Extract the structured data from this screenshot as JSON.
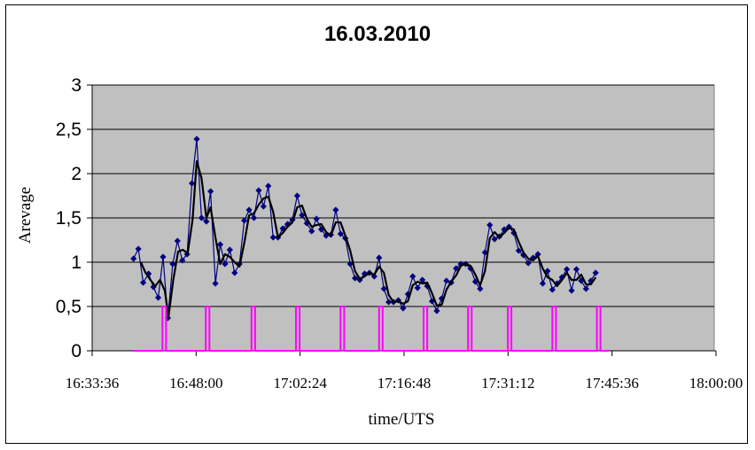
{
  "chart_data": {
    "type": "line",
    "title": "16.03.2010",
    "xlabel": "time/UTS",
    "ylabel": "Arevage",
    "ylim": [
      0,
      3
    ],
    "yticks": [
      "0",
      "0,5",
      "1",
      "1,5",
      "2",
      "2,5",
      "3"
    ],
    "xticks": [
      "16:33:36",
      "16:48:00",
      "17:02:24",
      "17:16:48",
      "17:31:12",
      "17:45:36",
      "18:00:00"
    ],
    "grid": true,
    "background_color": "#c0c0c0",
    "series": [
      {
        "color": "#000080",
        "marker": "diamond",
        "points": [
          [
            "16:39:20",
            1.04
          ],
          [
            "16:40:00",
            1.15
          ],
          [
            "16:40:40",
            0.77
          ],
          [
            "16:41:25",
            0.87
          ],
          [
            "16:42:05",
            0.72
          ],
          [
            "16:42:45",
            0.6
          ],
          [
            "16:43:25",
            1.06
          ],
          [
            "16:44:05",
            0.37
          ],
          [
            "16:44:45",
            0.98
          ],
          [
            "16:45:25",
            1.24
          ],
          [
            "16:46:05",
            1.02
          ],
          [
            "16:46:45",
            1.09
          ],
          [
            "16:47:25",
            1.89
          ],
          [
            "16:48:05",
            2.39
          ],
          [
            "16:48:45",
            1.5
          ],
          [
            "16:49:25",
            1.46
          ],
          [
            "16:50:00",
            1.8
          ],
          [
            "16:50:40",
            0.76
          ],
          [
            "16:51:20",
            1.2
          ],
          [
            "16:52:00",
            0.98
          ],
          [
            "16:52:40",
            1.14
          ],
          [
            "16:53:20",
            0.88
          ],
          [
            "16:54:00",
            0.98
          ],
          [
            "16:54:40",
            1.47
          ],
          [
            "16:55:20",
            1.59
          ],
          [
            "16:56:00",
            1.5
          ],
          [
            "16:56:40",
            1.81
          ],
          [
            "16:57:20",
            1.63
          ],
          [
            "16:58:00",
            1.86
          ],
          [
            "16:58:40",
            1.28
          ],
          [
            "16:59:20",
            1.28
          ],
          [
            "17:00:00",
            1.38
          ],
          [
            "17:00:40",
            1.43
          ],
          [
            "17:01:20",
            1.48
          ],
          [
            "17:02:00",
            1.75
          ],
          [
            "17:02:40",
            1.53
          ],
          [
            "17:03:20",
            1.44
          ],
          [
            "17:04:00",
            1.35
          ],
          [
            "17:04:40",
            1.49
          ],
          [
            "17:05:20",
            1.37
          ],
          [
            "17:06:00",
            1.3
          ],
          [
            "17:06:40",
            1.31
          ],
          [
            "17:07:20",
            1.59
          ],
          [
            "17:08:00",
            1.32
          ],
          [
            "17:08:40",
            1.27
          ],
          [
            "17:09:20",
            0.98
          ],
          [
            "17:10:00",
            0.82
          ],
          [
            "17:10:40",
            0.8
          ],
          [
            "17:11:20",
            0.87
          ],
          [
            "17:12:00",
            0.88
          ],
          [
            "17:12:40",
            0.84
          ],
          [
            "17:13:20",
            1.05
          ],
          [
            "17:14:00",
            0.7
          ],
          [
            "17:14:40",
            0.55
          ],
          [
            "17:15:20",
            0.55
          ],
          [
            "17:16:00",
            0.57
          ],
          [
            "17:16:40",
            0.48
          ],
          [
            "17:17:20",
            0.64
          ],
          [
            "17:18:00",
            0.84
          ],
          [
            "17:18:40",
            0.71
          ],
          [
            "17:19:20",
            0.8
          ],
          [
            "17:20:00",
            0.73
          ],
          [
            "17:20:40",
            0.56
          ],
          [
            "17:21:20",
            0.45
          ],
          [
            "17:22:00",
            0.59
          ],
          [
            "17:22:40",
            0.79
          ],
          [
            "17:23:20",
            0.77
          ],
          [
            "17:24:00",
            0.93
          ],
          [
            "17:24:40",
            0.98
          ],
          [
            "17:25:20",
            0.98
          ],
          [
            "17:26:00",
            0.93
          ],
          [
            "17:26:40",
            0.78
          ],
          [
            "17:27:20",
            0.7
          ],
          [
            "17:28:00",
            1.11
          ],
          [
            "17:28:40",
            1.42
          ],
          [
            "17:29:20",
            1.26
          ],
          [
            "17:30:00",
            1.29
          ],
          [
            "17:30:40",
            1.37
          ],
          [
            "17:31:20",
            1.4
          ],
          [
            "17:32:00",
            1.33
          ],
          [
            "17:32:40",
            1.13
          ],
          [
            "17:33:20",
            1.08
          ],
          [
            "17:34:00",
            0.99
          ],
          [
            "17:34:40",
            1.05
          ],
          [
            "17:35:20",
            1.09
          ],
          [
            "17:36:00",
            0.76
          ],
          [
            "17:36:40",
            0.9
          ],
          [
            "17:37:20",
            0.69
          ],
          [
            "17:38:00",
            0.76
          ],
          [
            "17:38:40",
            0.83
          ],
          [
            "17:39:20",
            0.92
          ],
          [
            "17:40:00",
            0.68
          ],
          [
            "17:40:40",
            0.92
          ],
          [
            "17:41:20",
            0.79
          ],
          [
            "17:42:00",
            0.7
          ],
          [
            "17:42:40",
            0.79
          ],
          [
            "17:43:20",
            0.88
          ]
        ]
      },
      {
        "color": "#000000",
        "marker": "none",
        "points": [
          [
            "16:40:20",
            1.0
          ],
          [
            "16:41:00",
            0.88
          ],
          [
            "16:41:40",
            0.8
          ],
          [
            "16:42:20",
            0.73
          ],
          [
            "16:43:00",
            0.8
          ],
          [
            "16:43:40",
            0.68
          ],
          [
            "16:44:10",
            0.38
          ],
          [
            "16:44:50",
            0.8
          ],
          [
            "16:45:30",
            1.12
          ],
          [
            "16:46:10",
            1.14
          ],
          [
            "16:46:50",
            1.1
          ],
          [
            "16:47:30",
            1.48
          ],
          [
            "16:48:05",
            2.14
          ],
          [
            "16:48:45",
            1.95
          ],
          [
            "16:49:25",
            1.5
          ],
          [
            "16:50:00",
            1.62
          ],
          [
            "16:50:40",
            1.28
          ],
          [
            "16:51:20",
            0.98
          ],
          [
            "16:52:00",
            1.09
          ],
          [
            "16:52:40",
            1.06
          ],
          [
            "16:53:20",
            1.0
          ],
          [
            "16:54:00",
            0.95
          ],
          [
            "16:54:40",
            1.22
          ],
          [
            "16:55:20",
            1.53
          ],
          [
            "16:56:00",
            1.55
          ],
          [
            "16:56:40",
            1.65
          ],
          [
            "16:57:20",
            1.72
          ],
          [
            "16:58:00",
            1.74
          ],
          [
            "16:58:40",
            1.57
          ],
          [
            "16:59:20",
            1.28
          ],
          [
            "17:00:00",
            1.33
          ],
          [
            "17:00:40",
            1.4
          ],
          [
            "17:01:20",
            1.45
          ],
          [
            "17:02:00",
            1.62
          ],
          [
            "17:02:40",
            1.64
          ],
          [
            "17:03:20",
            1.49
          ],
          [
            "17:04:00",
            1.4
          ],
          [
            "17:04:40",
            1.42
          ],
          [
            "17:05:20",
            1.43
          ],
          [
            "17:06:00",
            1.34
          ],
          [
            "17:06:40",
            1.3
          ],
          [
            "17:07:20",
            1.45
          ],
          [
            "17:08:00",
            1.45
          ],
          [
            "17:08:40",
            1.3
          ],
          [
            "17:09:20",
            1.13
          ],
          [
            "17:10:00",
            0.9
          ],
          [
            "17:10:40",
            0.81
          ],
          [
            "17:11:20",
            0.84
          ],
          [
            "17:12:00",
            0.88
          ],
          [
            "17:12:40",
            0.86
          ],
          [
            "17:13:20",
            0.95
          ],
          [
            "17:14:00",
            0.88
          ],
          [
            "17:14:40",
            0.63
          ],
          [
            "17:15:20",
            0.55
          ],
          [
            "17:16:00",
            0.56
          ],
          [
            "17:16:40",
            0.53
          ],
          [
            "17:17:20",
            0.56
          ],
          [
            "17:18:00",
            0.74
          ],
          [
            "17:18:40",
            0.78
          ],
          [
            "17:19:20",
            0.76
          ],
          [
            "17:20:00",
            0.77
          ],
          [
            "17:20:40",
            0.65
          ],
          [
            "17:21:20",
            0.51
          ],
          [
            "17:22:00",
            0.52
          ],
          [
            "17:22:40",
            0.69
          ],
          [
            "17:23:20",
            0.78
          ],
          [
            "17:24:00",
            0.85
          ],
          [
            "17:24:40",
            0.96
          ],
          [
            "17:25:20",
            0.98
          ],
          [
            "17:26:00",
            0.96
          ],
          [
            "17:26:40",
            0.86
          ],
          [
            "17:27:20",
            0.74
          ],
          [
            "17:28:00",
            0.9
          ],
          [
            "17:28:40",
            1.27
          ],
          [
            "17:29:20",
            1.34
          ],
          [
            "17:30:00",
            1.28
          ],
          [
            "17:30:40",
            1.33
          ],
          [
            "17:31:20",
            1.39
          ],
          [
            "17:32:00",
            1.37
          ],
          [
            "17:32:40",
            1.23
          ],
          [
            "17:33:20",
            1.11
          ],
          [
            "17:34:00",
            1.04
          ],
          [
            "17:34:40",
            1.02
          ],
          [
            "17:35:20",
            1.07
          ],
          [
            "17:36:00",
            0.93
          ],
          [
            "17:36:40",
            0.83
          ],
          [
            "17:37:20",
            0.8
          ],
          [
            "17:38:00",
            0.73
          ],
          [
            "17:38:40",
            0.8
          ],
          [
            "17:39:20",
            0.88
          ],
          [
            "17:40:00",
            0.8
          ],
          [
            "17:40:40",
            0.8
          ],
          [
            "17:41:20",
            0.86
          ],
          [
            "17:42:00",
            0.75
          ],
          [
            "17:42:40",
            0.75
          ],
          [
            "17:43:20",
            0.83
          ]
        ]
      },
      {
        "color": "#ff00ff",
        "marker": "small-dash",
        "points": [
          [
            "16:39:20",
            0
          ],
          [
            "16:43:20",
            0
          ],
          [
            "16:43:20",
            0.5
          ],
          [
            "16:43:50",
            0.5
          ],
          [
            "16:43:50",
            0
          ],
          [
            "16:49:20",
            0
          ],
          [
            "16:49:20",
            0.5
          ],
          [
            "16:49:50",
            0.5
          ],
          [
            "16:49:50",
            0
          ],
          [
            "16:55:40",
            0
          ],
          [
            "16:55:40",
            0.5
          ],
          [
            "16:56:10",
            0.5
          ],
          [
            "16:56:10",
            0
          ],
          [
            "17:01:50",
            0
          ],
          [
            "17:01:50",
            0.5
          ],
          [
            "17:02:20",
            0.5
          ],
          [
            "17:02:20",
            0
          ],
          [
            "17:08:00",
            0
          ],
          [
            "17:08:00",
            0.5
          ],
          [
            "17:08:30",
            0.5
          ],
          [
            "17:08:30",
            0
          ],
          [
            "17:13:20",
            0
          ],
          [
            "17:13:20",
            0.5
          ],
          [
            "17:13:50",
            0.5
          ],
          [
            "17:13:50",
            0
          ],
          [
            "17:19:30",
            0
          ],
          [
            "17:19:30",
            0.5
          ],
          [
            "17:20:00",
            0.5
          ],
          [
            "17:20:00",
            0
          ],
          [
            "17:25:40",
            0
          ],
          [
            "17:25:40",
            0.5
          ],
          [
            "17:26:10",
            0.5
          ],
          [
            "17:26:10",
            0
          ],
          [
            "17:31:10",
            0
          ],
          [
            "17:31:10",
            0.5
          ],
          [
            "17:31:40",
            0.5
          ],
          [
            "17:31:40",
            0
          ],
          [
            "17:37:20",
            0
          ],
          [
            "17:37:20",
            0.5
          ],
          [
            "17:37:50",
            0.5
          ],
          [
            "17:37:50",
            0
          ],
          [
            "17:43:30",
            0
          ],
          [
            "17:43:30",
            0.5
          ],
          [
            "17:44:00",
            0.5
          ],
          [
            "17:44:00",
            0
          ],
          [
            "17:45:10",
            0
          ]
        ]
      }
    ]
  }
}
